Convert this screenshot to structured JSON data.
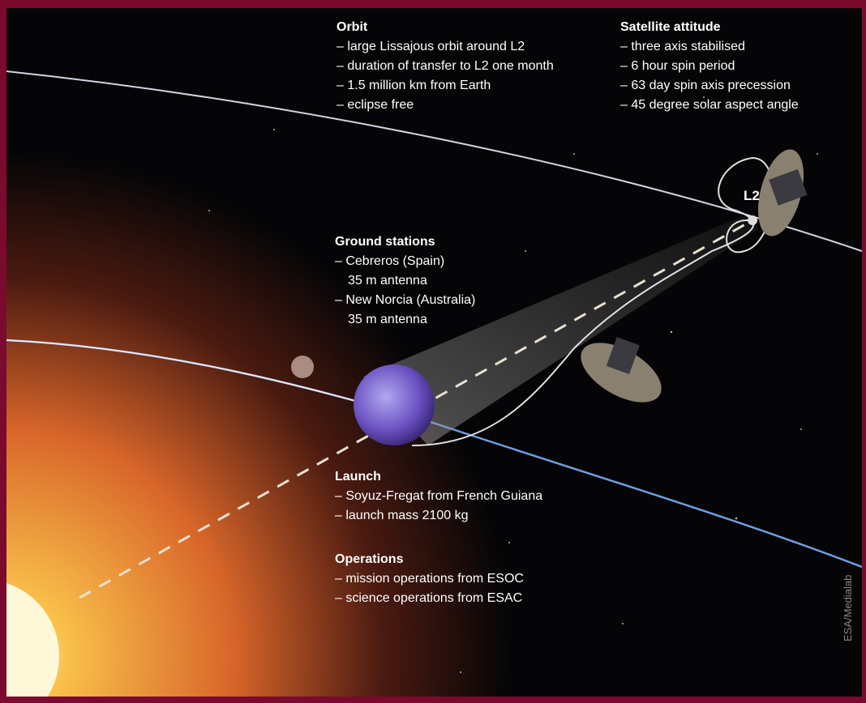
{
  "sections": [
    {
      "title": "Orbit",
      "items": [
        "– large Lissajous orbit around L2",
        "– duration of transfer to L2 one month",
        "– 1.5 million km from Earth",
        "– eclipse free"
      ]
    },
    {
      "title": "Satellite attitude",
      "items": [
        "– three axis stabilised",
        "– 6 hour spin period",
        "– 63 day spin axis precession",
        "– 45 degree solar aspect angle"
      ]
    },
    {
      "title": "Ground stations",
      "items": [
        "– Cebreros (Spain)",
        "35 m antenna",
        "– New Norcia (Australia)",
        "35 m antenna"
      ]
    },
    {
      "title": "Launch",
      "items": [
        "– Soyuz-Fregat from French Guiana",
        "– launch mass 2100 kg"
      ]
    },
    {
      "title": "Operations",
      "items": [
        "– mission operations from ESOC",
        "– science operations from ESAC"
      ]
    }
  ],
  "l2_label": "L2",
  "credit": "ESA/Medialab"
}
